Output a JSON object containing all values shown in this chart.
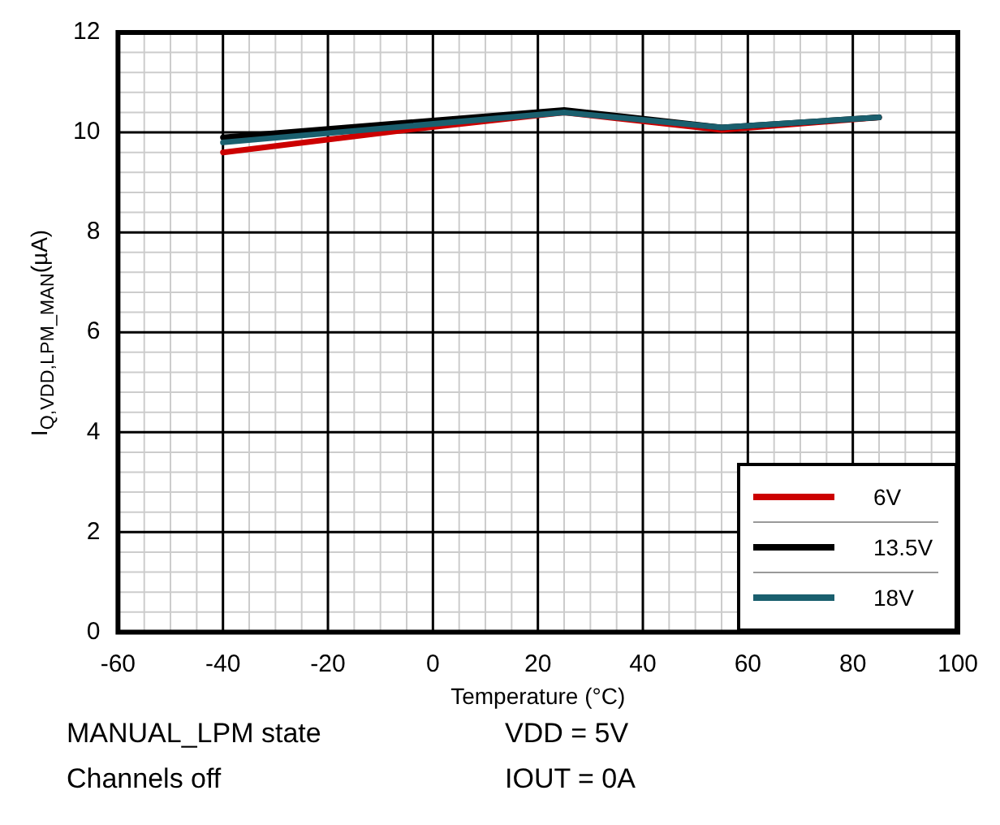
{
  "chart_data": {
    "type": "line",
    "xlabel": "Temperature (°C)",
    "ylabel": "I$_{Q,VDD,LPM_MAN}$(µA)",
    "xlim": [
      -60,
      100
    ],
    "xticks": [
      -60,
      -40,
      -20,
      0,
      20,
      40,
      60,
      80,
      100
    ],
    "ylim": [
      0,
      12
    ],
    "yticks": [
      0,
      2,
      4,
      6,
      8,
      10,
      12
    ],
    "grid": true,
    "legend": "bottom right",
    "marker": "none",
    "line_style": "solid",
    "series": [
      {
        "name": "6V",
        "color": "#cc0000",
        "x": [
          -40,
          -5,
          25,
          55,
          85
        ],
        "values": [
          9.6,
          10.05,
          10.4,
          10.05,
          10.3
        ]
      },
      {
        "name": "13.5V",
        "color": "#000000",
        "x": [
          -40,
          25,
          55,
          85
        ],
        "values": [
          9.9,
          10.45,
          10.1,
          10.3
        ]
      },
      {
        "name": "18V",
        "color": "#1a5f6e",
        "x": [
          -40,
          25,
          55,
          85
        ],
        "values": [
          9.8,
          10.4,
          10.1,
          10.3
        ]
      }
    ],
    "annotations": [
      "MANUAL_LPM state",
      "VDD = 5V",
      "Channels off",
      "IOUT = 0A"
    ]
  }
}
